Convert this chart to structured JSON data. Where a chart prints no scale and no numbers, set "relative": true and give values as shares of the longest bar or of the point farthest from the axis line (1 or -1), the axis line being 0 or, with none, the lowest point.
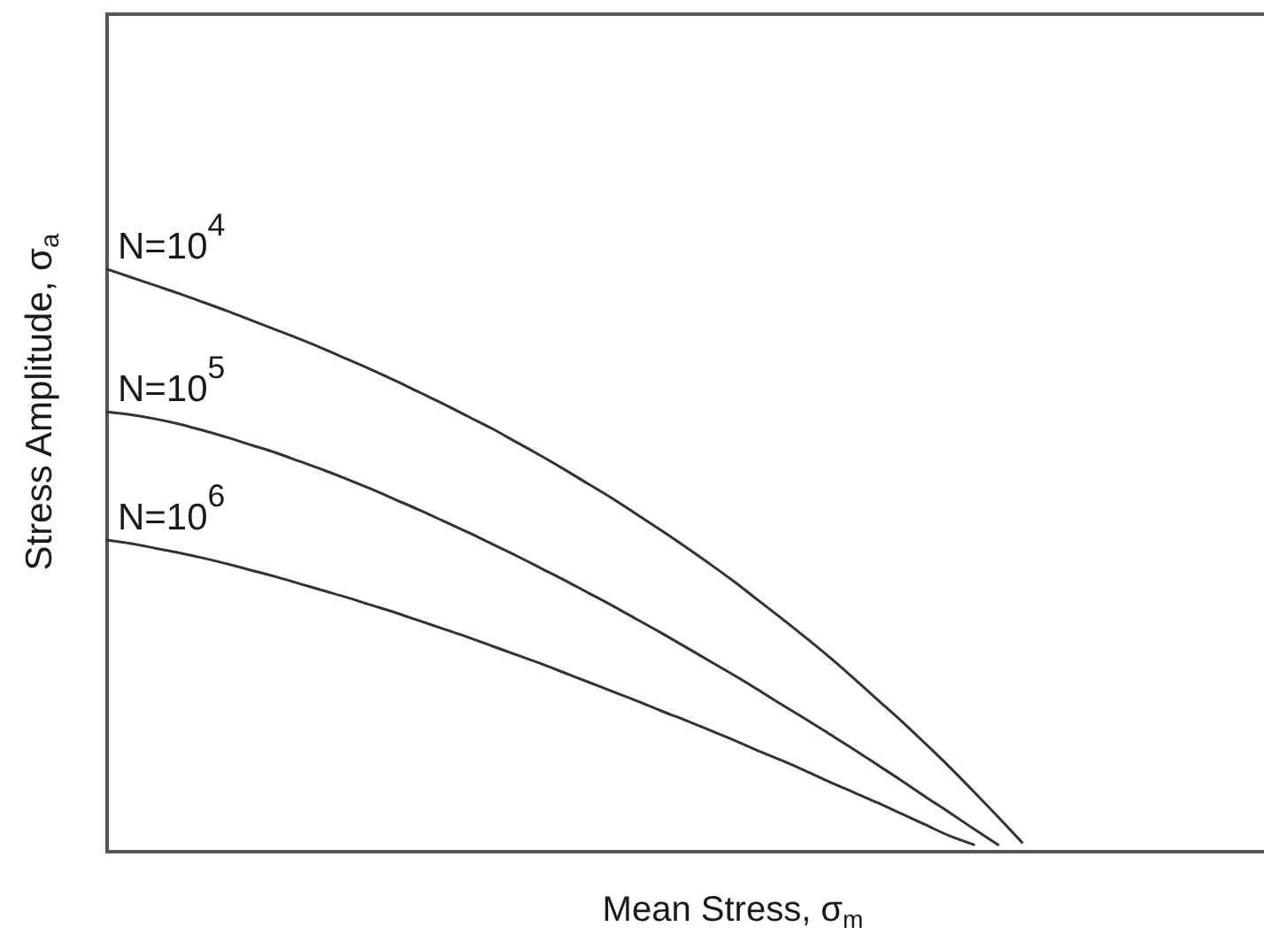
{
  "chart_data": {
    "type": "line",
    "relative": true,
    "xlabel": "Mean Stress, σ$_{m}$",
    "ylabel": "Stress Amplitude, σ$_{a}$",
    "categories": [
      null,
      null,
      null,
      null,
      null,
      null,
      null,
      null,
      null,
      null,
      null,
      null,
      null,
      null,
      null,
      null,
      null,
      null,
      null,
      null,
      null,
      null,
      null,
      null,
      null,
      null,
      null,
      null,
      null,
      null,
      null,
      null,
      null,
      null,
      null,
      null,
      null,
      null,
      null,
      null,
      null,
      null,
      null,
      null,
      null,
      null,
      null,
      null,
      null
    ],
    "series": [
      {
        "name": "N=10$^{4}$",
        "color": "#333333",
        "values": [
          1,
          0.986,
          0.972,
          0.958,
          0.943,
          0.928,
          0.912,
          0.896,
          0.88,
          0.863,
          0.845,
          0.827,
          0.808,
          0.788,
          0.768,
          0.747,
          0.726,
          0.703,
          0.68,
          0.656,
          0.631,
          0.606,
          0.579,
          0.552,
          0.524,
          0.495,
          0.465,
          0.433,
          0.401,
          0.368,
          0.334,
          0.298,
          0.261,
          0.224,
          0.185,
          0.145,
          0.103,
          0.06,
          0.016,
          null,
          null,
          null,
          null,
          null,
          null,
          null,
          null,
          null,
          null
        ]
      },
      {
        "name": "N=10$^{5}$",
        "color": "#333333",
        "values": [
          0.755,
          0.75,
          0.743,
          0.734,
          0.723,
          0.711,
          0.698,
          0.685,
          0.67,
          0.655,
          0.639,
          0.622,
          0.604,
          0.586,
          0.567,
          0.548,
          0.528,
          0.508,
          0.487,
          0.466,
          0.444,
          0.422,
          0.399,
          0.376,
          0.352,
          0.328,
          0.304,
          0.279,
          0.253,
          0.228,
          0.202,
          0.176,
          0.149,
          0.122,
          0.094,
          0.067,
          0.039,
          0.012,
          null,
          null,
          null,
          null,
          null,
          null,
          null,
          null,
          null,
          null,
          null
        ]
      },
      {
        "name": "N=10$^{6}$",
        "color": "#333333",
        "values": [
          0.535,
          0.529,
          0.521,
          0.513,
          0.504,
          0.494,
          0.483,
          0.472,
          0.46,
          0.448,
          0.436,
          0.423,
          0.41,
          0.396,
          0.382,
          0.368,
          0.353,
          0.338,
          0.323,
          0.307,
          0.291,
          0.275,
          0.259,
          0.242,
          0.226,
          0.209,
          0.192,
          0.174,
          0.157,
          0.139,
          0.12,
          0.102,
          0.084,
          0.065,
          0.046,
          0.027,
          0.012,
          null,
          null,
          null,
          null,
          null,
          null,
          null,
          null,
          null,
          null,
          null,
          null
        ]
      }
    ]
  }
}
